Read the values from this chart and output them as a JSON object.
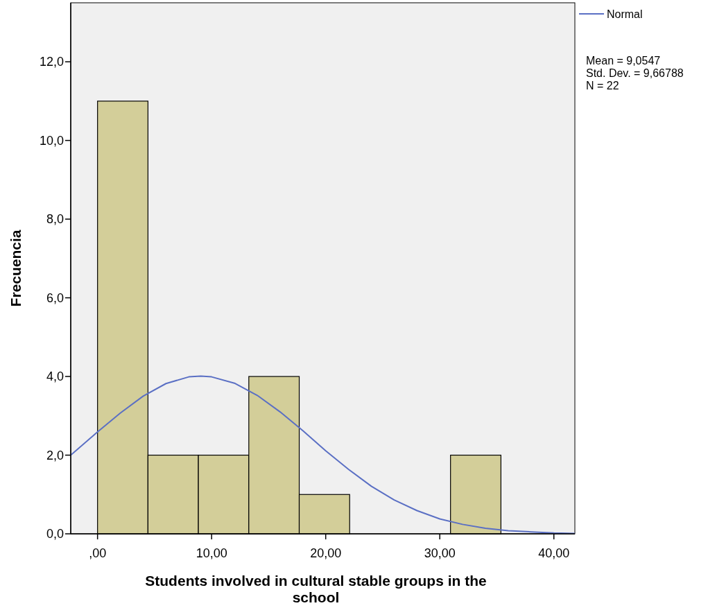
{
  "chart_data": {
    "type": "histogram",
    "xlabel": "Students involved in cultural stable groups in the school",
    "ylabel": "Frecuencia",
    "bins": [
      0,
      4.42,
      8.84,
      13.26,
      17.68,
      22.1,
      26.52,
      30.94,
      35.36
    ],
    "values": [
      11,
      2,
      2,
      4,
      1,
      0,
      0,
      2
    ],
    "color": "#d3ce99",
    "series": [
      {
        "type": "line",
        "name": "Normal",
        "color": "#5a6fc4",
        "x": [
          -2.35,
          0,
          2,
          4,
          6,
          8,
          9.05,
          10,
          12,
          14,
          16,
          18,
          20,
          22,
          24,
          26,
          28,
          30,
          32,
          34,
          36,
          38,
          40,
          41.84
        ],
        "values": [
          2.0,
          2.59,
          3.07,
          3.5,
          3.82,
          3.99,
          4.01,
          3.99,
          3.83,
          3.52,
          3.1,
          2.62,
          2.11,
          1.64,
          1.21,
          0.86,
          0.59,
          0.38,
          0.24,
          0.14,
          0.08,
          0.05,
          0.02,
          0.01
        ]
      }
    ],
    "xlim": [
      -2.35,
      41.84
    ],
    "ylim": [
      0,
      13.5
    ],
    "xticks": [
      {
        "value": 0,
        "label": ",00"
      },
      {
        "value": 10,
        "label": "10,00"
      },
      {
        "value": 20,
        "label": "20,00"
      },
      {
        "value": 30,
        "label": "30,00"
      },
      {
        "value": 40,
        "label": "40,00"
      }
    ],
    "yticks": [
      {
        "value": 0,
        "label": "0,0"
      },
      {
        "value": 2,
        "label": "2,0"
      },
      {
        "value": 4,
        "label": "4,0"
      },
      {
        "value": 6,
        "label": "6,0"
      },
      {
        "value": 8,
        "label": "8,0"
      },
      {
        "value": 10,
        "label": "10,0"
      },
      {
        "value": 12,
        "label": "12,0"
      }
    ],
    "annotations": [
      "Mean = 9,0547",
      "Std. Dev. = 9,66788",
      "N = 22"
    ],
    "legend": "right",
    "grid": false,
    "marker": "none",
    "line_style": "solid"
  }
}
